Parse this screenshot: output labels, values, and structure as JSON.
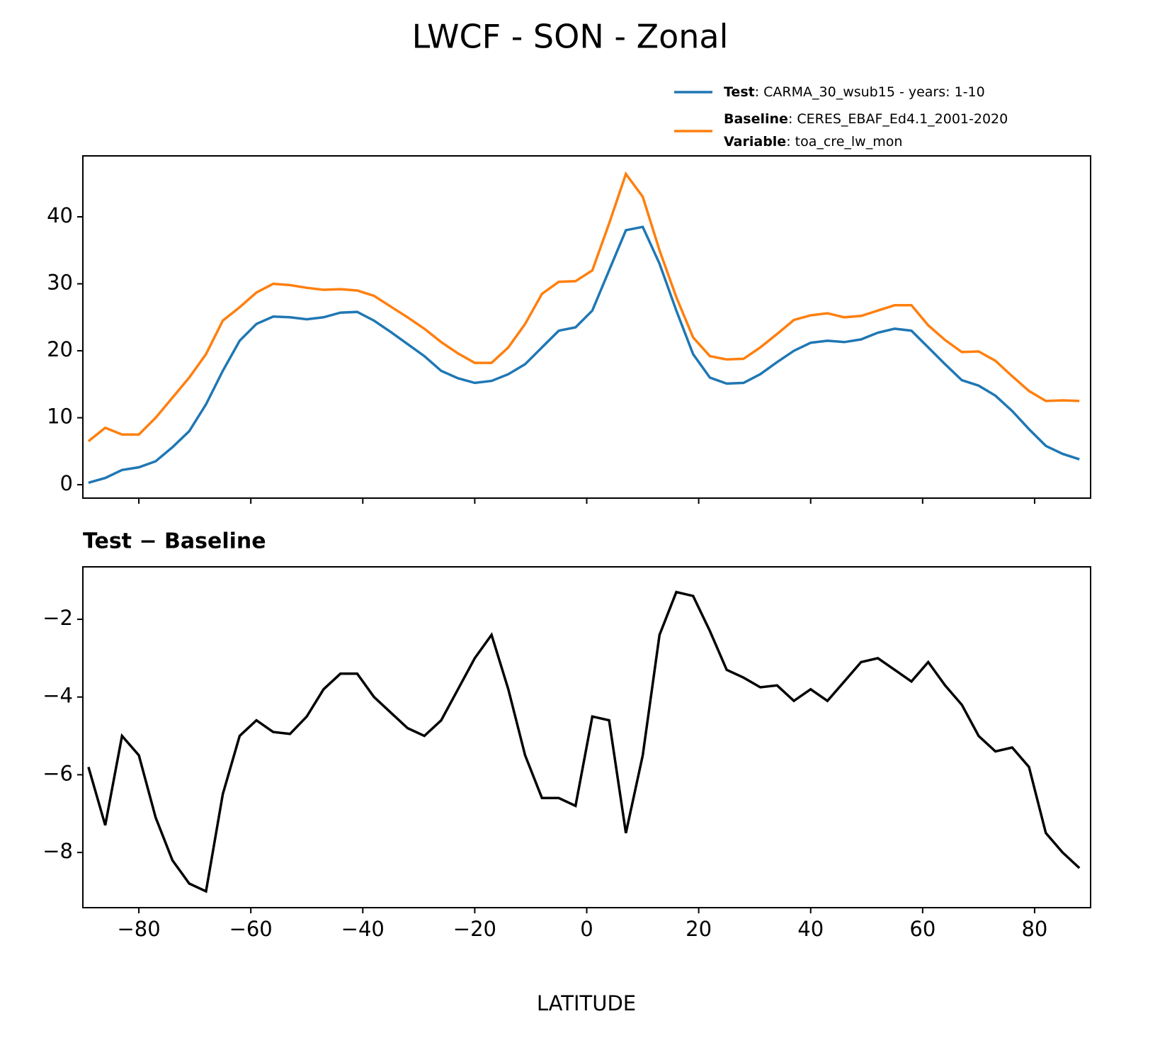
{
  "chart_data": [
    {
      "type": "line",
      "title": "LWCF - SON - Zonal",
      "x": [
        -89,
        -86,
        -83,
        -80,
        -77,
        -74,
        -71,
        -68,
        -65,
        -62,
        -59,
        -56,
        -53,
        -50,
        -47,
        -44,
        -41,
        -38,
        -35,
        -32,
        -29,
        -26,
        -23,
        -20,
        -17,
        -14,
        -11,
        -8,
        -5,
        -2,
        1,
        4,
        7,
        10,
        13,
        16,
        19,
        22,
        25,
        28,
        31,
        34,
        37,
        40,
        43,
        46,
        49,
        52,
        55,
        58,
        61,
        64,
        67,
        70,
        73,
        76,
        79,
        82,
        85,
        88
      ],
      "series": [
        {
          "name": "Test",
          "detail": ": CARMA_30_wsub15 - years: 1-10",
          "color": "#1f77b4",
          "values": [
            0.3,
            1.0,
            2.2,
            2.6,
            3.5,
            5.6,
            8.0,
            12.0,
            17.0,
            21.5,
            24.0,
            25.1,
            25.0,
            24.7,
            25.0,
            25.7,
            25.8,
            24.5,
            22.8,
            21.0,
            19.2,
            17.0,
            15.9,
            15.2,
            15.5,
            16.5,
            18.0,
            20.5,
            23.0,
            23.5,
            26.0,
            32.0,
            38.0,
            38.5,
            33.0,
            26.0,
            19.5,
            16.0,
            15.1,
            15.2,
            16.5,
            18.3,
            20.0,
            21.2,
            21.5,
            21.3,
            21.7,
            22.7,
            23.3,
            23.0,
            20.5,
            18.0,
            15.6,
            14.8,
            13.3,
            11.0,
            8.3,
            5.8,
            4.6,
            3.8
          ]
        },
        {
          "name": "Baseline",
          "detail": ": CERES_EBAF_Ed4.1_2001-2020",
          "extra_name": "Variable",
          "extra_detail": ": toa_cre_lw_mon",
          "color": "#ff7f0e",
          "values": [
            6.5,
            8.5,
            7.5,
            7.5,
            10.0,
            13.0,
            16.0,
            19.5,
            24.5,
            26.5,
            28.7,
            30.0,
            29.8,
            29.4,
            29.1,
            29.2,
            29.0,
            28.2,
            26.6,
            25.0,
            23.3,
            21.3,
            19.6,
            18.2,
            18.2,
            20.5,
            24.0,
            28.5,
            30.3,
            30.4,
            32.0,
            39.0,
            46.4,
            43.0,
            35.0,
            28.0,
            22.0,
            19.2,
            18.7,
            18.8,
            20.5,
            22.5,
            24.6,
            25.3,
            25.6,
            25.0,
            25.2,
            26.0,
            26.8,
            26.8,
            23.8,
            21.6,
            19.8,
            19.9,
            18.5,
            16.2,
            14.0,
            12.5,
            12.6,
            12.5
          ]
        }
      ],
      "xlim": [
        -90,
        90
      ],
      "ylim": [
        -2.0,
        49.1
      ],
      "yticks": [
        0,
        10,
        20,
        30,
        40
      ],
      "legend": "upper right"
    },
    {
      "type": "line",
      "title": "Test − Baseline",
      "xlabel": "LATITUDE",
      "x": [
        -89,
        -86,
        -83,
        -80,
        -77,
        -74,
        -71,
        -68,
        -65,
        -62,
        -59,
        -56,
        -53,
        -50,
        -47,
        -44,
        -41,
        -38,
        -35,
        -32,
        -29,
        -26,
        -23,
        -20,
        -17,
        -14,
        -11,
        -8,
        -5,
        -2,
        1,
        4,
        7,
        10,
        13,
        16,
        19,
        22,
        25,
        28,
        31,
        34,
        37,
        40,
        43,
        46,
        49,
        52,
        55,
        58,
        61,
        64,
        67,
        70,
        73,
        76,
        79,
        82,
        85,
        88
      ],
      "values": [
        -5.8,
        -7.3,
        -5.0,
        -5.5,
        -7.1,
        -8.2,
        -8.8,
        -9.0,
        -6.5,
        -5.0,
        -4.6,
        -4.9,
        -4.95,
        -4.5,
        -3.8,
        -3.4,
        -3.4,
        -4.0,
        -4.4,
        -4.8,
        -5.0,
        -4.6,
        -3.8,
        -3.0,
        -2.4,
        -3.8,
        -5.5,
        -6.6,
        -6.6,
        -6.8,
        -4.5,
        -4.6,
        -7.5,
        -5.5,
        -2.4,
        -1.3,
        -1.4,
        -2.3,
        -3.3,
        -3.5,
        -3.75,
        -3.7,
        -4.1,
        -3.8,
        -4.1,
        -3.6,
        -3.1,
        -3.0,
        -3.3,
        -3.6,
        -3.1,
        -3.7,
        -4.2,
        -5.0,
        -5.4,
        -5.3,
        -5.8,
        -7.5,
        -8.0,
        -8.4
      ],
      "color": "#000000",
      "xlim": [
        -90,
        90
      ],
      "ylim": [
        -9.42,
        -0.65
      ],
      "xticks": [
        {
          "value": -80,
          "label": "−80"
        },
        {
          "value": -60,
          "label": "−60"
        },
        {
          "value": -40,
          "label": "−40"
        },
        {
          "value": -20,
          "label": "−20"
        },
        0,
        20,
        40,
        60,
        80
      ],
      "yticks": [
        {
          "value": -8,
          "label": "−8"
        },
        {
          "value": -6,
          "label": "−6"
        },
        {
          "value": -4,
          "label": "−4"
        },
        {
          "value": -2,
          "label": "−2"
        }
      ]
    }
  ]
}
